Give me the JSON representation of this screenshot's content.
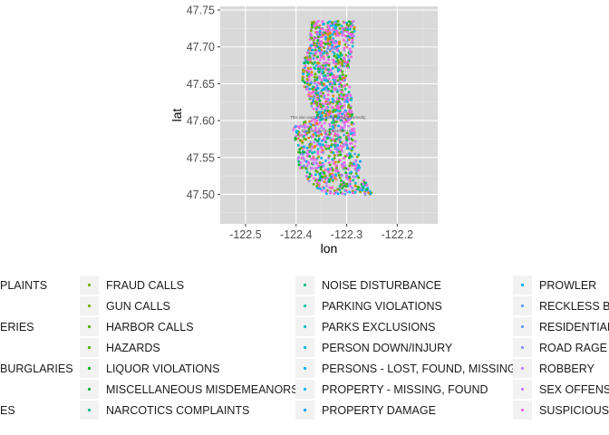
{
  "chart_data": {
    "type": "scatter",
    "xlabel": "lon",
    "ylabel": "lat",
    "xlim": [
      -122.55,
      -122.12
    ],
    "ylim": [
      47.46,
      47.755
    ],
    "x_ticks": [
      -122.5,
      -122.4,
      -122.3,
      -122.2
    ],
    "x_tick_labels": [
      "-122.5",
      "-122.4",
      "-122.3",
      "-122.2"
    ],
    "y_ticks": [
      47.5,
      47.55,
      47.6,
      47.65,
      47.7,
      47.75
    ],
    "y_tick_labels": [
      "47.50",
      "47.55",
      "47.60",
      "47.65",
      "47.70",
      "47.75"
    ],
    "grid": true,
    "panel_background": "#d9d9d9",
    "legend_position": "bottom",
    "map_overlay_text": [
      "This site can't load Google Maps correctly.",
      "Do you own this website?"
    ],
    "legend": {
      "columns": [
        [
          {
            "label": "...PLAINTS",
            "color": "#b79f00"
          },
          {
            "label": "",
            "color": "#b79f00"
          },
          {
            "label": "...ERIES",
            "color": "#b79f00"
          },
          {
            "label": "",
            "color": "#b79f00"
          },
          {
            "label": "...BURGLARIES",
            "color": "#b79f00"
          },
          {
            "label": "",
            "color": "#b79f00"
          },
          {
            "label": "...ES",
            "color": "#b79f00"
          }
        ],
        [
          {
            "label": "FRAUD CALLS",
            "color": "#7cae00"
          },
          {
            "label": "GUN CALLS",
            "color": "#7cae00"
          },
          {
            "label": "HARBOR CALLS",
            "color": "#53b400"
          },
          {
            "label": "HAZARDS",
            "color": "#53b400"
          },
          {
            "label": "LIQUOR VIOLATIONS",
            "color": "#00b81f"
          },
          {
            "label": "MISCELLANEOUS MISDEMEANORS",
            "color": "#00ba38"
          },
          {
            "label": "NARCOTICS COMPLAINTS",
            "color": "#00c08b"
          }
        ],
        [
          {
            "label": "NOISE DISTURBANCE",
            "color": "#00c08b"
          },
          {
            "label": "PARKING VIOLATIONS",
            "color": "#00c0af"
          },
          {
            "label": "PARKS EXCLUSIONS",
            "color": "#00bfc4"
          },
          {
            "label": "PERSON DOWN/INJURY",
            "color": "#00bcd8"
          },
          {
            "label": "PERSONS - LOST, FOUND, MISSING",
            "color": "#00b4ef"
          },
          {
            "label": "PROPERTY - MISSING, FOUND",
            "color": "#00b4ef"
          },
          {
            "label": "PROPERTY DAMAGE",
            "color": "#00a9ff"
          }
        ],
        [
          {
            "label": "PROWLER",
            "color": "#00a9ff"
          },
          {
            "label": "RECKLESS BU...",
            "color": "#619cff"
          },
          {
            "label": "RESIDENTIAL...",
            "color": "#619cff"
          },
          {
            "label": "ROAD RAGE",
            "color": "#9590ff"
          },
          {
            "label": "ROBBERY",
            "color": "#b983ff"
          },
          {
            "label": "SEX OFFENSE...",
            "color": "#c77cff"
          },
          {
            "label": "SUSPICIOUS C...",
            "color": "#e76bf3"
          }
        ]
      ]
    },
    "point_colors": [
      "#f8766d",
      "#e58700",
      "#c99800",
      "#a3a500",
      "#6bb100",
      "#00ba38",
      "#00bf7d",
      "#00c0af",
      "#00bcd8",
      "#00b0f6",
      "#619cff",
      "#b983ff",
      "#e76bf3",
      "#fd61d1",
      "#ff67a4",
      "#e76bf3",
      "#fd61d1",
      "#00b0f6",
      "#6bb100",
      "#a3a500"
    ]
  }
}
